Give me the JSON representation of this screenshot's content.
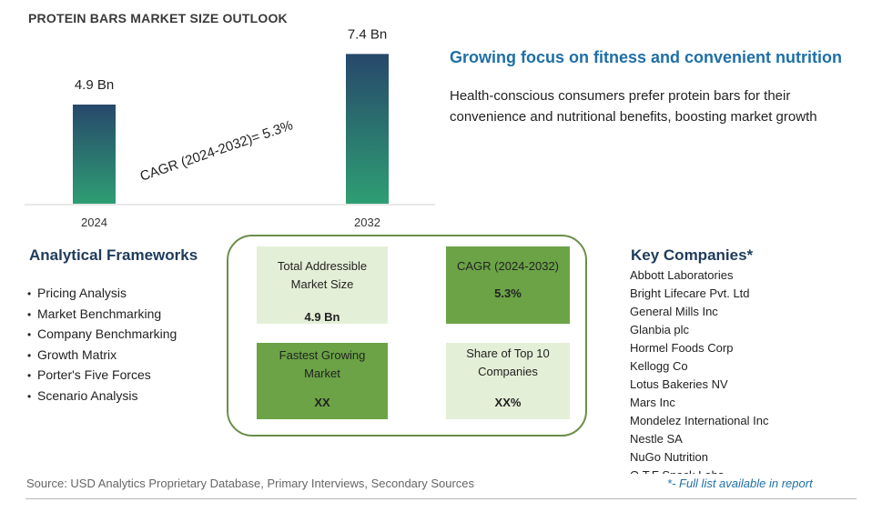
{
  "title": "PROTEIN BARS MARKET SIZE OUTLOOK",
  "chart_data": {
    "type": "bar",
    "categories": [
      "2024",
      "2032"
    ],
    "values": [
      4.9,
      7.4
    ],
    "value_labels": [
      "4.9 Bn",
      "7.4 Bn"
    ],
    "unit": "Bn",
    "annotation": "CAGR (2024-2032)=  5.3%",
    "ylim": [
      0,
      8
    ],
    "grid": false,
    "colors": {
      "bar_top": "#27486b",
      "bar_bottom": "#2e9e73"
    }
  },
  "highlight": {
    "headline": "Growing focus on fitness and convenient nutrition",
    "description": "Health-conscious consumers prefer protein bars for their convenience and nutritional benefits, boosting market growth"
  },
  "frameworks": {
    "heading": "Analytical Frameworks",
    "items": [
      "Pricing Analysis",
      "Market Benchmarking",
      "Company Benchmarking",
      "Growth Matrix",
      "Porter's Five Forces",
      "Scenario Analysis"
    ]
  },
  "cards": [
    {
      "label": "Total Addressible Market Size",
      "value": "4.9 Bn",
      "style": "light"
    },
    {
      "label": "CAGR (2024-2032)",
      "value": "5.3%",
      "style": "dark"
    },
    {
      "label": "Fastest Growing Market",
      "value": "XX",
      "style": "dark"
    },
    {
      "label": "Share of Top 10 Companies",
      "value": "XX%",
      "style": "light"
    }
  ],
  "companies": {
    "heading": "Key Companies*",
    "items": [
      "Abbott Laboratories",
      "Bright Lifecare Pvt. Ltd",
      "General Mills Inc",
      "Glanbia plc",
      "Hormel Foods Corp",
      "Kellogg Co",
      "Lotus Bakeries NV",
      "Mars Inc",
      "Mondelez International Inc",
      "Nestle SA",
      "NuGo Nutrition",
      "Q.T.F Snack Labs"
    ],
    "footnote": "*- Full list available in report"
  },
  "source": "Source: USD Analytics Proprietary Database, Primary Interviews, Secondary Sources",
  "colors": {
    "accent_blue": "#1f6fa6",
    "heading_navy": "#1f3b5b",
    "card_light": "#e4efd7",
    "card_dark": "#6ba346",
    "frame_green": "#6a8f49"
  }
}
